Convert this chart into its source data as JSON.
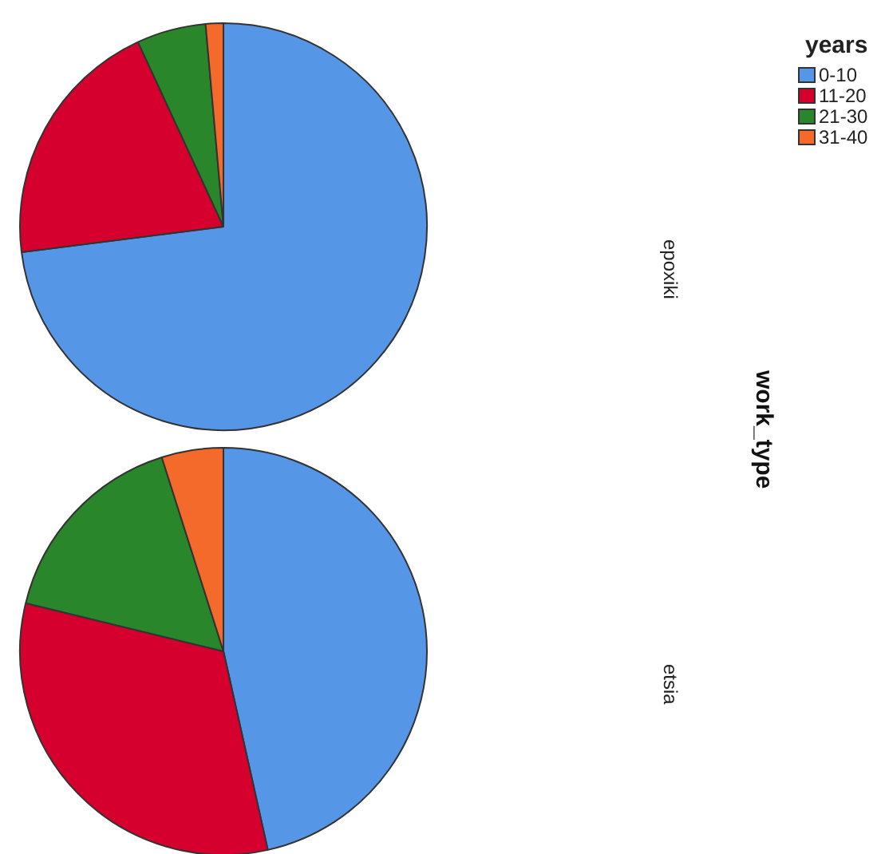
{
  "chart_data": [
    {
      "type": "pie",
      "title": "epoxiki",
      "categories": [
        "0-10",
        "11-20",
        "21-30",
        "31-40"
      ],
      "values": [
        73.0,
        20.1,
        5.5,
        1.4
      ],
      "colors": [
        "#5596e6",
        "#d6002e",
        "#2a862a",
        "#f46a2a"
      ],
      "legend": "top right",
      "legend_title": "years",
      "annotations": [
        "work_type"
      ]
    },
    {
      "type": "pie",
      "title": "etsia",
      "categories": [
        null,
        null,
        null,
        null
      ],
      "values": [
        46.5,
        32.3,
        16.3,
        4.9
      ],
      "colors": [
        "#5596e6",
        "#d6002e",
        "#2a862a",
        "#f46a2a"
      ],
      "legend": false
    }
  ]
}
